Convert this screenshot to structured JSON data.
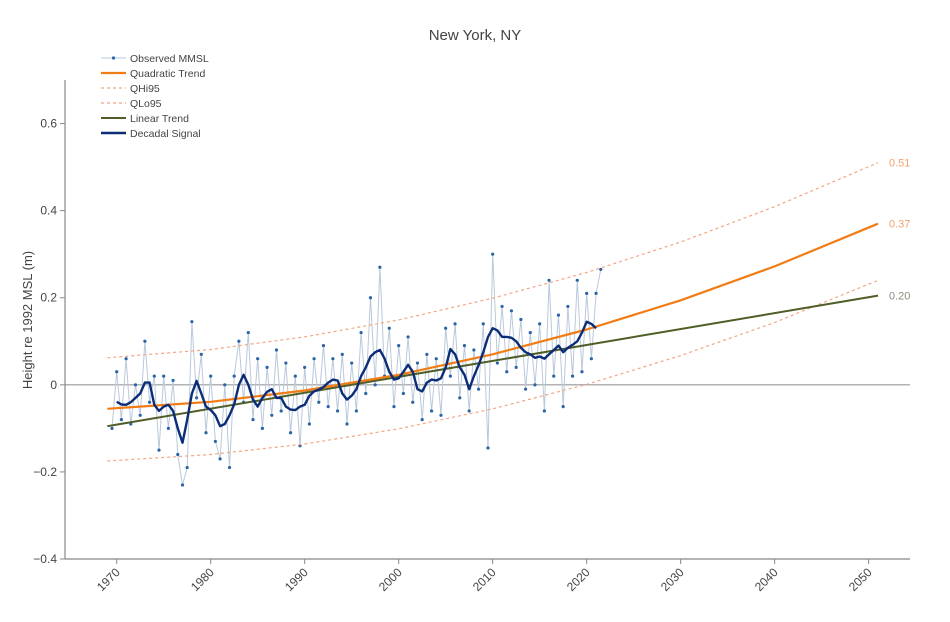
{
  "chart_data": {
    "type": "line",
    "title": "New York, NY",
    "xlabel": "",
    "ylabel": "Height re 1992 MSL (m)",
    "xlim": [
      1964.5,
      2054.4
    ],
    "ylim": [
      -0.4,
      0.7
    ],
    "x_ticks": [
      1970,
      1980,
      1990,
      2000,
      2010,
      2020,
      2030,
      2040,
      2050
    ],
    "x_tick_labels": [
      "1970",
      "1980",
      "1990",
      "2000",
      "2010",
      "2020",
      "2030",
      "2040",
      "2050"
    ],
    "y_ticks": [
      -0.4,
      -0.2,
      0,
      0.2,
      0.4,
      0.6
    ],
    "y_tick_labels": [
      "−0.4",
      "−0.2",
      "0",
      "0.2",
      "0.4",
      "0.6"
    ],
    "zero_line": true,
    "grid": false,
    "legend_position": "top-left",
    "colors": {
      "observed_line": "#b9c9dc",
      "observed_marker": "#2a64a8",
      "quadratic": "#f27c14",
      "bounds": "#f4a582",
      "linear": "#4f5d26",
      "decadal": "#0b2d78",
      "label_orange": "#f4a070",
      "label_gray": "#8a8d7a"
    },
    "series": [
      {
        "name": "Observed MMSL",
        "style": "line+markers",
        "points": [
          [
            1969.5,
            -0.1
          ],
          [
            1970,
            0.03
          ],
          [
            1970.5,
            -0.08
          ],
          [
            1971,
            0.06
          ],
          [
            1971.5,
            -0.09
          ],
          [
            1972,
            0.0
          ],
          [
            1972.5,
            -0.07
          ],
          [
            1973,
            0.1
          ],
          [
            1973.5,
            -0.04
          ],
          [
            1974,
            0.02
          ],
          [
            1974.5,
            -0.15
          ],
          [
            1975,
            0.02
          ],
          [
            1975.5,
            -0.1
          ],
          [
            1976,
            0.01
          ],
          [
            1976.5,
            -0.16
          ],
          [
            1977,
            -0.23
          ],
          [
            1977.5,
            -0.19
          ],
          [
            1978,
            0.145
          ],
          [
            1978.5,
            -0.03
          ],
          [
            1979,
            0.07
          ],
          [
            1979.5,
            -0.11
          ],
          [
            1980,
            0.02
          ],
          [
            1980.5,
            -0.13
          ],
          [
            1981,
            -0.17
          ],
          [
            1981.5,
            0.0
          ],
          [
            1982,
            -0.19
          ],
          [
            1982.5,
            0.02
          ],
          [
            1983,
            0.1
          ],
          [
            1983.5,
            -0.04
          ],
          [
            1984,
            0.12
          ],
          [
            1984.5,
            -0.08
          ],
          [
            1985,
            0.06
          ],
          [
            1985.5,
            -0.1
          ],
          [
            1986,
            0.04
          ],
          [
            1986.5,
            -0.07
          ],
          [
            1987,
            0.08
          ],
          [
            1987.5,
            -0.06
          ],
          [
            1988,
            0.05
          ],
          [
            1988.5,
            -0.11
          ],
          [
            1989,
            0.02
          ],
          [
            1989.5,
            -0.14
          ],
          [
            1990,
            0.04
          ],
          [
            1990.5,
            -0.09
          ],
          [
            1991,
            0.06
          ],
          [
            1991.5,
            -0.04
          ],
          [
            1992,
            0.09
          ],
          [
            1992.5,
            -0.05
          ],
          [
            1993,
            0.06
          ],
          [
            1993.5,
            -0.06
          ],
          [
            1994,
            0.07
          ],
          [
            1994.5,
            -0.09
          ],
          [
            1995,
            0.05
          ],
          [
            1995.5,
            -0.06
          ],
          [
            1996,
            0.12
          ],
          [
            1996.5,
            -0.02
          ],
          [
            1997,
            0.2
          ],
          [
            1997.5,
            0.0
          ],
          [
            1998,
            0.27
          ],
          [
            1998.5,
            0.02
          ],
          [
            1999,
            0.13
          ],
          [
            1999.5,
            -0.05
          ],
          [
            2000,
            0.09
          ],
          [
            2000.5,
            -0.02
          ],
          [
            2001,
            0.11
          ],
          [
            2001.5,
            -0.04
          ],
          [
            2002,
            0.05
          ],
          [
            2002.5,
            -0.08
          ],
          [
            2003,
            0.07
          ],
          [
            2003.5,
            -0.06
          ],
          [
            2004,
            0.06
          ],
          [
            2004.5,
            -0.07
          ],
          [
            2005,
            0.13
          ],
          [
            2005.5,
            0.02
          ],
          [
            2006,
            0.14
          ],
          [
            2006.5,
            -0.03
          ],
          [
            2007,
            0.09
          ],
          [
            2007.5,
            -0.06
          ],
          [
            2008,
            0.08
          ],
          [
            2008.5,
            -0.01
          ],
          [
            2009,
            0.14
          ],
          [
            2009.5,
            -0.145
          ],
          [
            2010,
            0.3
          ],
          [
            2010.5,
            0.05
          ],
          [
            2011,
            0.18
          ],
          [
            2011.5,
            0.03
          ],
          [
            2012,
            0.17
          ],
          [
            2012.5,
            0.04
          ],
          [
            2013,
            0.15
          ],
          [
            2013.5,
            -0.01
          ],
          [
            2014,
            0.12
          ],
          [
            2014.5,
            0.0
          ],
          [
            2015,
            0.14
          ],
          [
            2015.5,
            -0.06
          ],
          [
            2016,
            0.24
          ],
          [
            2016.5,
            0.02
          ],
          [
            2017,
            0.16
          ],
          [
            2017.5,
            -0.05
          ],
          [
            2018,
            0.18
          ],
          [
            2018.5,
            0.02
          ],
          [
            2019,
            0.24
          ],
          [
            2019.5,
            0.03
          ],
          [
            2020,
            0.21
          ],
          [
            2020.5,
            0.06
          ],
          [
            2021,
            0.21
          ],
          [
            2021.5,
            0.265
          ]
        ]
      },
      {
        "name": "Quadratic Trend",
        "style": "solid",
        "points": [
          [
            1969,
            -0.055
          ],
          [
            1980,
            -0.039
          ],
          [
            1990,
            -0.013
          ],
          [
            2000,
            0.023
          ],
          [
            2010,
            0.07
          ],
          [
            2020,
            0.127
          ],
          [
            2030,
            0.194
          ],
          [
            2040,
            0.272
          ],
          [
            2051,
            0.37
          ]
        ]
      },
      {
        "name": "QHi95",
        "style": "dotted",
        "points": [
          [
            1969,
            0.062
          ],
          [
            1980,
            0.081
          ],
          [
            1990,
            0.11
          ],
          [
            2000,
            0.149
          ],
          [
            2010,
            0.199
          ],
          [
            2020,
            0.258
          ],
          [
            2030,
            0.328
          ],
          [
            2040,
            0.409
          ],
          [
            2051,
            0.51
          ]
        ]
      },
      {
        "name": "QLo95",
        "style": "dotted",
        "points": [
          [
            1969,
            -0.175
          ],
          [
            1980,
            -0.16
          ],
          [
            1990,
            -0.136
          ],
          [
            2000,
            -0.101
          ],
          [
            2010,
            -0.055
          ],
          [
            2020,
            0.001
          ],
          [
            2030,
            0.067
          ],
          [
            2040,
            0.143
          ],
          [
            2051,
            0.24
          ]
        ]
      },
      {
        "name": "Linear Trend",
        "style": "solid",
        "points": [
          [
            1969,
            -0.095
          ],
          [
            2051,
            0.205
          ]
        ]
      },
      {
        "name": "Decadal Signal",
        "style": "solid",
        "points": [
          [
            1970,
            -0.039
          ],
          [
            1970.5,
            -0.045
          ],
          [
            1971,
            -0.046
          ],
          [
            1971.5,
            -0.04
          ],
          [
            1972,
            -0.03
          ],
          [
            1972.5,
            -0.02
          ],
          [
            1973,
            0.005
          ],
          [
            1973.5,
            0.005
          ],
          [
            1974,
            -0.046
          ],
          [
            1974.5,
            -0.06
          ],
          [
            1975,
            -0.05
          ],
          [
            1975.5,
            -0.046
          ],
          [
            1976,
            -0.06
          ],
          [
            1976.5,
            -0.1
          ],
          [
            1977,
            -0.133
          ],
          [
            1977.5,
            -0.08
          ],
          [
            1978,
            -0.02
          ],
          [
            1978.5,
            0.009
          ],
          [
            1979,
            -0.02
          ],
          [
            1979.5,
            -0.05
          ],
          [
            1980,
            -0.058
          ],
          [
            1980.5,
            -0.07
          ],
          [
            1981,
            -0.095
          ],
          [
            1981.5,
            -0.09
          ],
          [
            1982,
            -0.07
          ],
          [
            1982.5,
            -0.045
          ],
          [
            1983,
            0.0
          ],
          [
            1983.5,
            0.023
          ],
          [
            1984,
            0.0
          ],
          [
            1984.5,
            -0.034
          ],
          [
            1985,
            -0.05
          ],
          [
            1985.5,
            -0.03
          ],
          [
            1986,
            -0.016
          ],
          [
            1986.5,
            -0.01
          ],
          [
            1987,
            -0.03
          ],
          [
            1987.5,
            -0.03
          ],
          [
            1988,
            -0.05
          ],
          [
            1988.5,
            -0.057
          ],
          [
            1989,
            -0.058
          ],
          [
            1989.5,
            -0.05
          ],
          [
            1990,
            -0.046
          ],
          [
            1990.5,
            -0.025
          ],
          [
            1991,
            -0.015
          ],
          [
            1991.5,
            -0.011
          ],
          [
            1992,
            -0.005
          ],
          [
            1992.5,
            0.005
          ],
          [
            1993,
            0.012
          ],
          [
            1993.5,
            0.01
          ],
          [
            1994,
            -0.02
          ],
          [
            1994.5,
            -0.034
          ],
          [
            1995,
            -0.025
          ],
          [
            1995.5,
            -0.01
          ],
          [
            1996,
            0.02
          ],
          [
            1996.5,
            0.04
          ],
          [
            1997,
            0.065
          ],
          [
            1997.5,
            0.075
          ],
          [
            1998,
            0.08
          ],
          [
            1998.5,
            0.06
          ],
          [
            1999,
            0.03
          ],
          [
            1999.5,
            0.012
          ],
          [
            2000,
            0.015
          ],
          [
            2000.5,
            0.03
          ],
          [
            2001,
            0.046
          ],
          [
            2001.5,
            0.03
          ],
          [
            2002,
            -0.01
          ],
          [
            2002.5,
            -0.015
          ],
          [
            2003,
            0.005
          ],
          [
            2003.5,
            0.012
          ],
          [
            2004,
            0.01
          ],
          [
            2004.5,
            0.015
          ],
          [
            2005,
            0.04
          ],
          [
            2005.5,
            0.082
          ],
          [
            2006,
            0.07
          ],
          [
            2006.5,
            0.04
          ],
          [
            2007,
            0.023
          ],
          [
            2007.5,
            -0.01
          ],
          [
            2008,
            0.02
          ],
          [
            2008.5,
            0.045
          ],
          [
            2009,
            0.075
          ],
          [
            2009.5,
            0.11
          ],
          [
            2010,
            0.13
          ],
          [
            2010.5,
            0.125
          ],
          [
            2011,
            0.11
          ],
          [
            2011.5,
            0.11
          ],
          [
            2012,
            0.108
          ],
          [
            2012.5,
            0.1
          ],
          [
            2013,
            0.085
          ],
          [
            2013.5,
            0.075
          ],
          [
            2014,
            0.07
          ],
          [
            2014.5,
            0.062
          ],
          [
            2015,
            0.065
          ],
          [
            2015.5,
            0.06
          ],
          [
            2016,
            0.07
          ],
          [
            2016.5,
            0.08
          ],
          [
            2017,
            0.09
          ],
          [
            2017.5,
            0.075
          ],
          [
            2018,
            0.085
          ],
          [
            2018.5,
            0.092
          ],
          [
            2019,
            0.1
          ],
          [
            2019.5,
            0.12
          ],
          [
            2020,
            0.145
          ],
          [
            2020.5,
            0.14
          ],
          [
            2021,
            0.13
          ]
        ]
      }
    ],
    "end_labels": [
      {
        "series": "QHi95",
        "text": "0.51",
        "value": 0.51
      },
      {
        "series": "Quadratic Trend",
        "text": "0.37",
        "value": 0.37
      },
      {
        "series": "Linear Trend",
        "text": "0.20",
        "value": 0.205
      }
    ]
  }
}
